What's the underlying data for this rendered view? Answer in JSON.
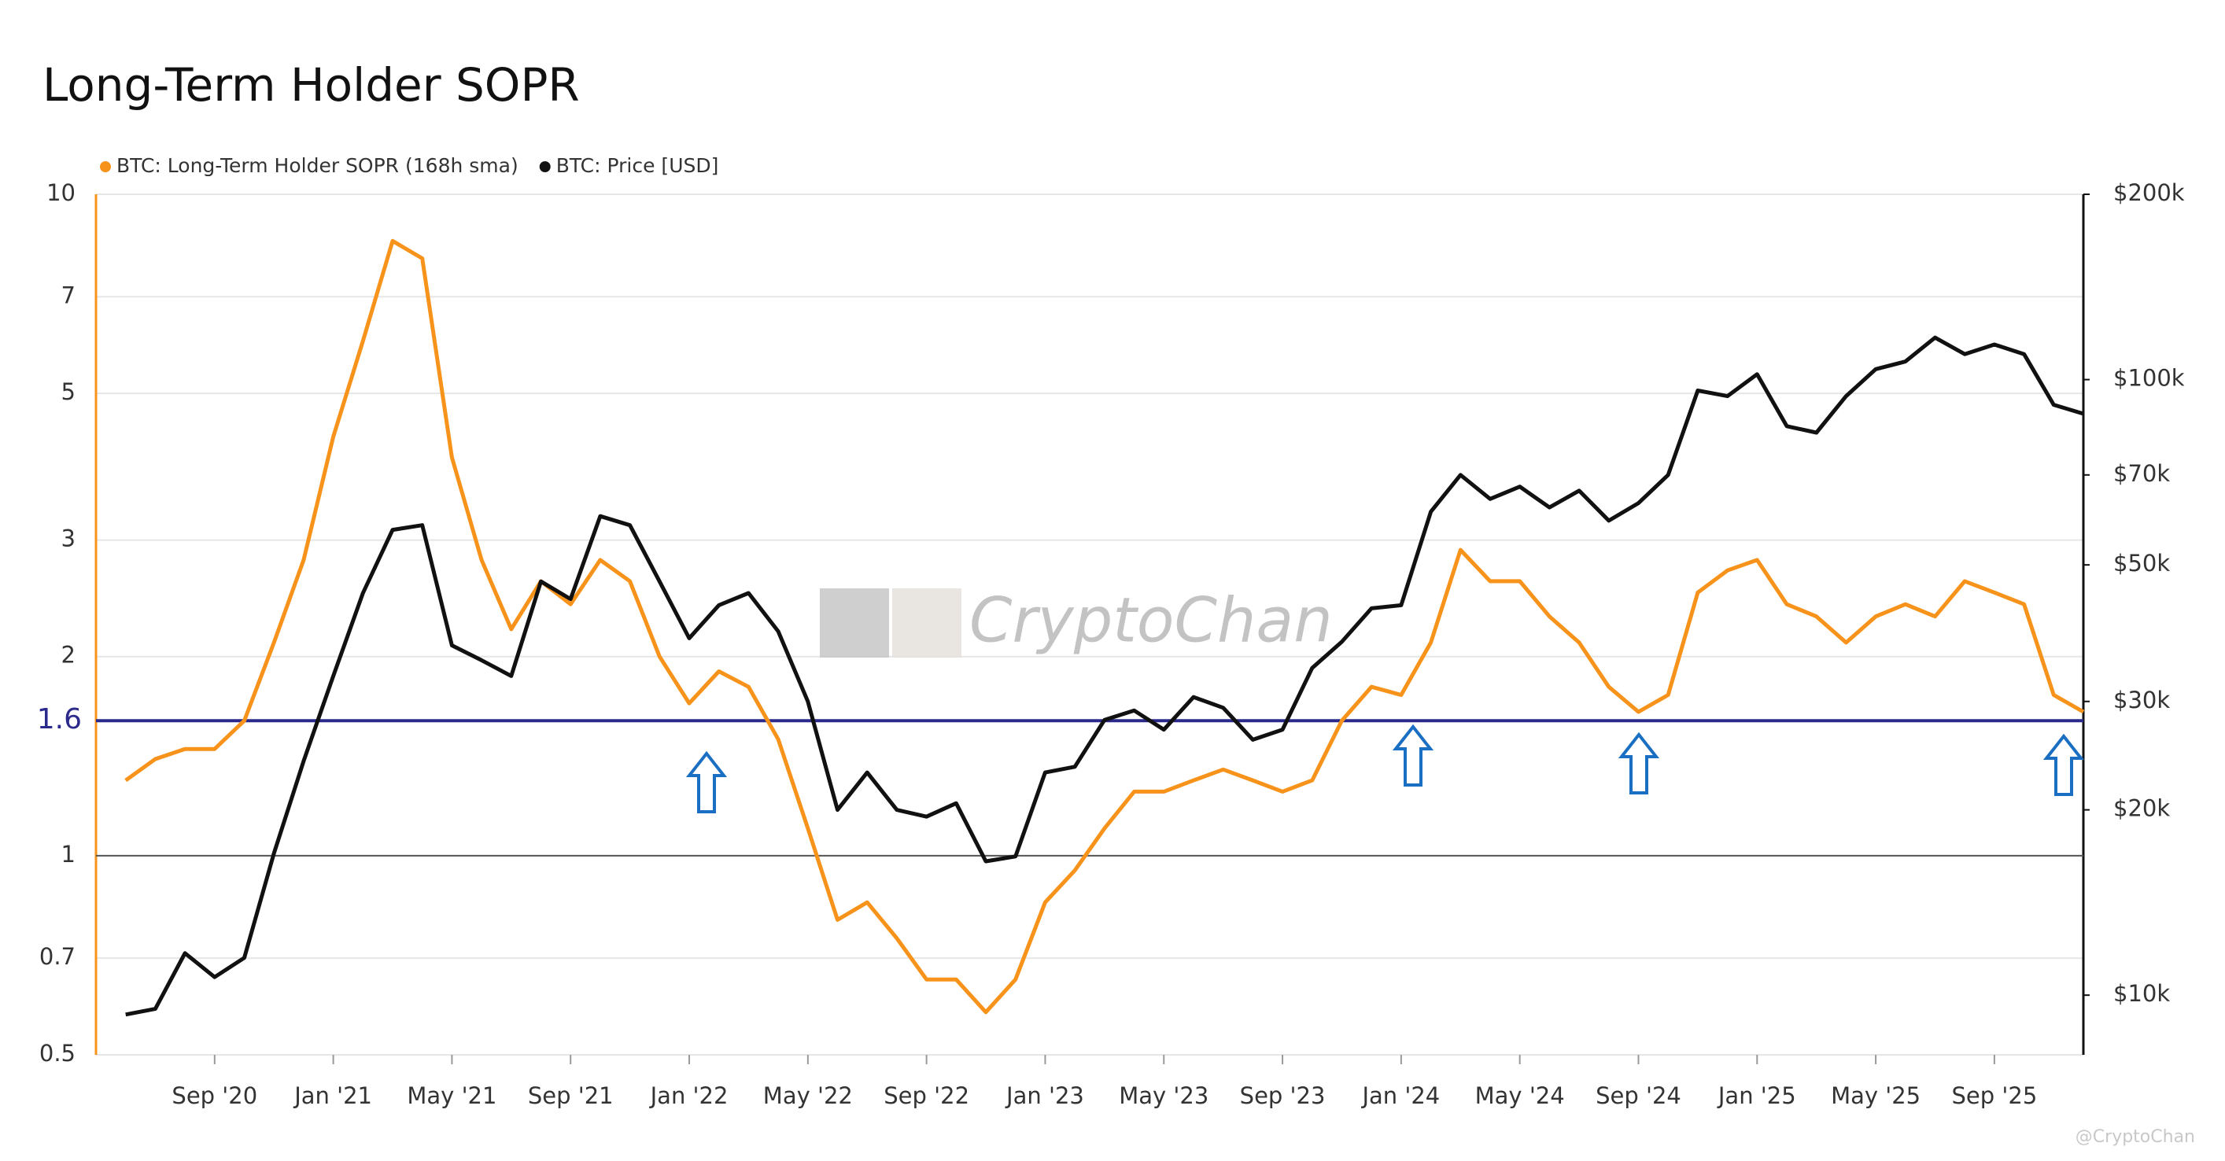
{
  "chart_data": {
    "type": "line",
    "title": "Long-Term Holder SOPR",
    "watermark": "CryptoChan",
    "credit": "@CryptoChan",
    "x": [
      "2020-06",
      "2020-07",
      "2020-08",
      "2020-09",
      "2020-10",
      "2020-11",
      "2020-12",
      "2021-01",
      "2021-02",
      "2021-03",
      "2021-04",
      "2021-05",
      "2021-06",
      "2021-07",
      "2021-08",
      "2021-09",
      "2021-10",
      "2021-11",
      "2021-12",
      "2022-01",
      "2022-02",
      "2022-03",
      "2022-04",
      "2022-05",
      "2022-06",
      "2022-07",
      "2022-08",
      "2022-09",
      "2022-10",
      "2022-11",
      "2022-12",
      "2023-01",
      "2023-02",
      "2023-03",
      "2023-04",
      "2023-05",
      "2023-06",
      "2023-07",
      "2023-08",
      "2023-09",
      "2023-10",
      "2023-11",
      "2023-12",
      "2024-01",
      "2024-02",
      "2024-03",
      "2024-04",
      "2024-05",
      "2024-06",
      "2024-07",
      "2024-08",
      "2024-09",
      "2024-10",
      "2024-11",
      "2024-12",
      "2025-01",
      "2025-02",
      "2025-03",
      "2025-04",
      "2025-05",
      "2025-06",
      "2025-07",
      "2025-08",
      "2025-09",
      "2025-10",
      "2025-11",
      "2025-12"
    ],
    "series": [
      {
        "name": "BTC: Long-Term Holder SOPR (168h sma)",
        "color": "#f7931a",
        "axis": "y",
        "values": [
          1.3,
          1.4,
          1.45,
          1.45,
          1.6,
          2.1,
          2.8,
          4.3,
          6.0,
          8.5,
          8.0,
          4.0,
          2.8,
          2.2,
          2.6,
          2.4,
          2.8,
          2.6,
          2.0,
          1.7,
          1.9,
          1.8,
          1.5,
          1.1,
          0.8,
          0.85,
          0.75,
          0.65,
          0.65,
          0.58,
          0.65,
          0.85,
          0.95,
          1.1,
          1.25,
          1.25,
          1.3,
          1.35,
          1.3,
          1.25,
          1.3,
          1.6,
          1.8,
          1.75,
          2.1,
          2.9,
          2.6,
          2.6,
          2.3,
          2.1,
          1.8,
          1.65,
          1.75,
          2.5,
          2.7,
          2.8,
          2.4,
          2.3,
          2.1,
          2.3,
          2.4,
          2.3,
          2.6,
          2.5,
          2.4,
          1.75,
          1.65
        ]
      },
      {
        "name": "BTC: Price [USD]",
        "color": "#111111",
        "axis": "y2",
        "values": [
          9300,
          9500,
          11700,
          10700,
          11500,
          17000,
          24000,
          33000,
          45000,
          57000,
          58000,
          37000,
          35000,
          33000,
          47000,
          44000,
          60000,
          58000,
          47000,
          38000,
          43000,
          45000,
          39000,
          30000,
          20000,
          23000,
          20000,
          19500,
          20500,
          16500,
          16800,
          23000,
          23500,
          28000,
          29000,
          27000,
          30500,
          29300,
          26000,
          27000,
          34000,
          37500,
          42500,
          43000,
          61000,
          70000,
          64000,
          67000,
          62000,
          66000,
          59000,
          63000,
          70000,
          96000,
          94000,
          102000,
          84000,
          82000,
          94000,
          104000,
          107000,
          117000,
          110000,
          114000,
          110000,
          91000,
          88000
        ]
      }
    ],
    "xlim": [
      "2020-05",
      "2025-12"
    ],
    "xticks": [
      {
        "value": "2020-09",
        "label": "Sep '20"
      },
      {
        "value": "2021-01",
        "label": "Jan '21"
      },
      {
        "value": "2021-05",
        "label": "May '21"
      },
      {
        "value": "2021-09",
        "label": "Sep '21"
      },
      {
        "value": "2022-01",
        "label": "Jan '22"
      },
      {
        "value": "2022-05",
        "label": "May '22"
      },
      {
        "value": "2022-09",
        "label": "Sep '22"
      },
      {
        "value": "2023-01",
        "label": "Jan '23"
      },
      {
        "value": "2023-05",
        "label": "May '23"
      },
      {
        "value": "2023-09",
        "label": "Sep '23"
      },
      {
        "value": "2024-01",
        "label": "Jan '24"
      },
      {
        "value": "2024-05",
        "label": "May '24"
      },
      {
        "value": "2024-09",
        "label": "Sep '24"
      },
      {
        "value": "2025-01",
        "label": "Jan '25"
      },
      {
        "value": "2025-05",
        "label": "May '25"
      },
      {
        "value": "2025-09",
        "label": "Sep '25"
      }
    ],
    "ylim": [
      0.5,
      10
    ],
    "yticks": [
      0.5,
      0.7,
      1,
      2,
      3,
      5,
      7,
      10
    ],
    "yscale": "log",
    "y2lim": [
      8000,
      200000
    ],
    "y2ticks": [
      {
        "value": 10000,
        "label": "$10k"
      },
      {
        "value": 20000,
        "label": "$20k"
      },
      {
        "value": 30000,
        "label": "$30k"
      },
      {
        "value": 50000,
        "label": "$50k"
      },
      {
        "value": 70000,
        "label": "$70k"
      },
      {
        "value": 100000,
        "label": "$100k"
      },
      {
        "value": 200000,
        "label": "$200k"
      }
    ],
    "y2scale": "log",
    "grid": true,
    "hlines": [
      {
        "value": 1.6,
        "label": "1.6",
        "color": "#2b2a8c"
      },
      {
        "value": 1,
        "color": "#555555"
      }
    ],
    "legend": "top-left"
  }
}
